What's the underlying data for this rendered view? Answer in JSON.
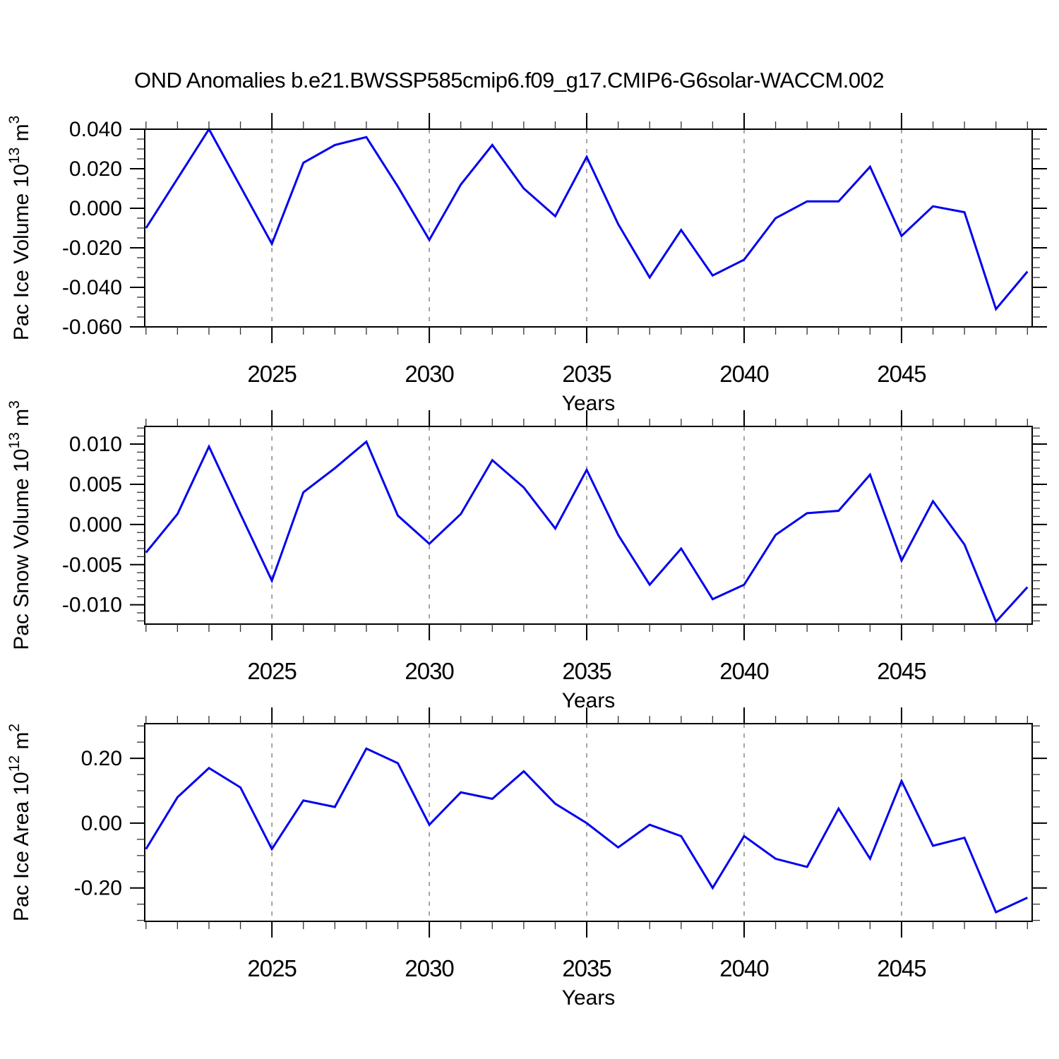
{
  "page": {
    "title": "OND Anomalies b.e21.BWSSP585cmip6.f09_g17.CMIP6-G6solar-WACCM.002"
  },
  "chart_data": [
    {
      "id": "pac-ice-volume",
      "type": "line",
      "title": "OND Anomalies b.e21.BWSSP585cmip6.f09_g17.CMIP6-G6solar-WACCM.002",
      "xlabel": "Years",
      "ylabel_plain": "Pac Ice Volume 10^13 m^3",
      "ylabel_segments": [
        {
          "text": "Pac Ice Volume 10",
          "sup": false
        },
        {
          "text": "13",
          "sup": true
        },
        {
          "text": " m",
          "sup": false
        },
        {
          "text": "3",
          "sup": true
        }
      ],
      "line_color": "#0000EE",
      "grid_color": "#888888",
      "x": [
        2021,
        2022,
        2023,
        2024,
        2025,
        2026,
        2027,
        2028,
        2029,
        2030,
        2031,
        2032,
        2033,
        2034,
        2035,
        2036,
        2037,
        2038,
        2039,
        2040,
        2041,
        2042,
        2043,
        2044,
        2045,
        2046,
        2047,
        2048,
        2049
      ],
      "values": [
        -0.01,
        0.015,
        0.04,
        0.011,
        -0.018,
        0.023,
        0.032,
        0.036,
        0.011,
        -0.016,
        0.012,
        0.032,
        0.01,
        -0.004,
        0.026,
        -0.008,
        -0.035,
        -0.011,
        -0.034,
        -0.026,
        -0.005,
        0.0035,
        0.0035,
        0.021,
        -0.014,
        0.001,
        -0.002,
        -0.051,
        -0.032
      ],
      "xlim": [
        2020.96,
        2049.15
      ],
      "ylim": [
        -0.06,
        0.04
      ],
      "xticks": [
        2025,
        2030,
        2035,
        2040,
        2045
      ],
      "xtick_labels": [
        "2025",
        "2030",
        "2035",
        "2040",
        "2045"
      ],
      "xminor_step": 1,
      "yticks": [
        0.04,
        0.02,
        0.0,
        -0.02,
        -0.04,
        -0.06
      ],
      "ytick_labels": [
        "0.040",
        "0.020",
        "0.000",
        "-0.020",
        "-0.040",
        "-0.060"
      ],
      "yminor_step": 0.005,
      "grid_vertical_dashed_at_major_xticks": true
    },
    {
      "id": "pac-snow-volume",
      "type": "line",
      "title": "",
      "xlabel": "Years",
      "ylabel_plain": "Pac Snow Volume 10^13 m^3",
      "ylabel_segments": [
        {
          "text": "Pac Snow Volume 10",
          "sup": false
        },
        {
          "text": "13",
          "sup": true
        },
        {
          "text": " m",
          "sup": false
        },
        {
          "text": "3",
          "sup": true
        }
      ],
      "line_color": "#0000EE",
      "grid_color": "#888888",
      "x": [
        2021,
        2022,
        2023,
        2024,
        2025,
        2026,
        2027,
        2028,
        2029,
        2030,
        2031,
        2032,
        2033,
        2034,
        2035,
        2036,
        2037,
        2038,
        2039,
        2040,
        2041,
        2042,
        2043,
        2044,
        2045,
        2046,
        2047,
        2048,
        2049
      ],
      "values": [
        -0.0035,
        0.0013,
        0.0097,
        0.0013,
        -0.007,
        0.004,
        0.007,
        0.0103,
        0.0011,
        -0.0024,
        0.0013,
        0.008,
        0.0046,
        -0.0005,
        0.0068,
        -0.0013,
        -0.0075,
        -0.003,
        -0.0093,
        -0.0075,
        -0.0013,
        0.0014,
        0.0017,
        0.0062,
        -0.0045,
        0.0029,
        -0.0025,
        -0.0121,
        -0.0078
      ],
      "xlim": [
        2020.96,
        2049.15
      ],
      "ylim": [
        -0.0124,
        0.0122
      ],
      "xticks": [
        2025,
        2030,
        2035,
        2040,
        2045
      ],
      "xtick_labels": [
        "2025",
        "2030",
        "2035",
        "2040",
        "2045"
      ],
      "xminor_step": 1,
      "yticks": [
        0.01,
        0.005,
        0.0,
        -0.005,
        -0.01
      ],
      "ytick_labels": [
        "0.010",
        "0.005",
        "0.000",
        "-0.005",
        "-0.010"
      ],
      "yminor_step": 0.001,
      "grid_vertical_dashed_at_major_xticks": true
    },
    {
      "id": "pac-ice-area",
      "type": "line",
      "title": "",
      "xlabel": "Years",
      "ylabel_plain": "Pac Ice Area 10^12 m^2",
      "ylabel_segments": [
        {
          "text": "Pac Ice Area 10",
          "sup": false
        },
        {
          "text": "12",
          "sup": true
        },
        {
          "text": " m",
          "sup": false
        },
        {
          "text": "2",
          "sup": true
        }
      ],
      "line_color": "#0000EE",
      "grid_color": "#888888",
      "x": [
        2021,
        2022,
        2023,
        2024,
        2025,
        2026,
        2027,
        2028,
        2029,
        2030,
        2031,
        2032,
        2033,
        2034,
        2035,
        2036,
        2037,
        2038,
        2039,
        2040,
        2041,
        2042,
        2043,
        2044,
        2045,
        2046,
        2047,
        2048,
        2049
      ],
      "values": [
        -0.08,
        0.08,
        0.17,
        0.11,
        -0.08,
        0.07,
        0.05,
        0.23,
        0.185,
        -0.005,
        0.095,
        0.075,
        0.16,
        0.06,
        0.0,
        -0.075,
        -0.005,
        -0.04,
        -0.2,
        -0.04,
        -0.11,
        -0.135,
        0.045,
        -0.11,
        0.13,
        -0.07,
        -0.045,
        -0.275,
        -0.23
      ],
      "xlim": [
        2020.96,
        2049.15
      ],
      "ylim": [
        -0.303,
        0.307
      ],
      "xticks": [
        2025,
        2030,
        2035,
        2040,
        2045
      ],
      "xtick_labels": [
        "2025",
        "2030",
        "2035",
        "2040",
        "2045"
      ],
      "xminor_step": 1,
      "yticks": [
        0.2,
        0.0,
        -0.2
      ],
      "ytick_labels": [
        "0.20",
        "0.00",
        "-0.20"
      ],
      "yminor_step": 0.05,
      "grid_vertical_dashed_at_major_xticks": true
    }
  ]
}
